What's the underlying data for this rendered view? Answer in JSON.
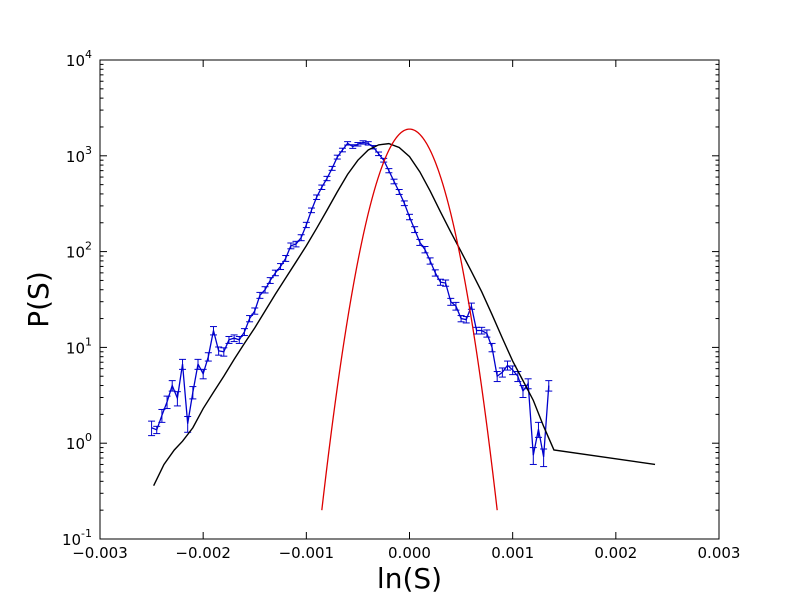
{
  "chart_data": {
    "type": "line",
    "xlabel": "ln(S)",
    "ylabel": "P(S)",
    "xlim": [
      -0.003,
      0.003
    ],
    "ylim": [
      0.1,
      10000
    ],
    "yscale": "log",
    "x_ticks": [
      -0.003,
      -0.002,
      -0.001,
      0.0,
      0.001,
      0.002,
      0.003
    ],
    "x_tick_labels": [
      "−0.003",
      "−0.002",
      "−0.001",
      "0.000",
      "0.001",
      "0.002",
      "0.003"
    ],
    "y_ticks": [
      {
        "value": 0.1,
        "base": "10",
        "exp": "-1"
      },
      {
        "value": 1,
        "base": "10",
        "exp": "0"
      },
      {
        "value": 10,
        "base": "10",
        "exp": "1"
      },
      {
        "value": 100,
        "base": "10",
        "exp": "2"
      },
      {
        "value": 1000,
        "base": "10",
        "exp": "3"
      },
      {
        "value": 10000,
        "base": "10",
        "exp": "4"
      }
    ],
    "grid": false,
    "series": [
      {
        "style": "line-with-errorbars",
        "color": "#0000cc",
        "points": [
          [
            -0.0025,
            1.45,
            0.25
          ],
          [
            -0.00245,
            1.38,
            0.12
          ],
          [
            -0.0024,
            1.95,
            0.3
          ],
          [
            -0.00235,
            2.7,
            0.4
          ],
          [
            -0.0023,
            4.0,
            0.5
          ],
          [
            -0.00225,
            2.95,
            0.5
          ],
          [
            -0.0022,
            6.7,
            0.8
          ],
          [
            -0.00215,
            1.6,
            0.3
          ],
          [
            -0.0021,
            3.4,
            0.5
          ],
          [
            -0.00205,
            6.7,
            0.8
          ],
          [
            -0.002,
            5.3,
            0.6
          ],
          [
            -0.00195,
            8.0,
            0.8
          ],
          [
            -0.0019,
            15.0,
            1.5
          ],
          [
            -0.00185,
            9.2,
            0.9
          ],
          [
            -0.0018,
            9.0,
            0.9
          ],
          [
            -0.00175,
            12.0,
            1.0
          ],
          [
            -0.0017,
            12.5,
            1.0
          ],
          [
            -0.00165,
            12.0,
            1.0
          ],
          [
            -0.0016,
            14.5,
            1.2
          ],
          [
            -0.00155,
            20.0,
            1.5
          ],
          [
            -0.0015,
            24.0,
            1.8
          ],
          [
            -0.00145,
            35.0,
            2.5
          ],
          [
            -0.0014,
            40.0,
            3.0
          ],
          [
            -0.00135,
            50.0,
            3.5
          ],
          [
            -0.0013,
            60.0,
            4.0
          ],
          [
            -0.00125,
            70.0,
            5.0
          ],
          [
            -0.0012,
            85.0,
            6.0
          ],
          [
            -0.00115,
            115.0,
            8.0
          ],
          [
            -0.0011,
            120.0,
            8.0
          ],
          [
            -0.00105,
            140.0,
            10.0
          ],
          [
            -0.001,
            190.0,
            12.0
          ],
          [
            -0.00095,
            270.0,
            15.0
          ],
          [
            -0.0009,
            370.0,
            20.0
          ],
          [
            -0.00085,
            470.0,
            25.0
          ],
          [
            -0.0008,
            580.0,
            30.0
          ],
          [
            -0.00075,
            740.0,
            35.0
          ],
          [
            -0.0007,
            970.0,
            45.0
          ],
          [
            -0.00065,
            1150.0,
            50.0
          ],
          [
            -0.0006,
            1350.0,
            55.0
          ],
          [
            -0.00055,
            1250.0,
            55.0
          ],
          [
            -0.0005,
            1320.0,
            55.0
          ],
          [
            -0.00045,
            1380.0,
            55.0
          ],
          [
            -0.0004,
            1350.0,
            55.0
          ],
          [
            -0.00035,
            1230.0,
            50.0
          ],
          [
            -0.0003,
            1050.0,
            45.0
          ],
          [
            -0.00025,
            900.0,
            40.0
          ],
          [
            -0.0002,
            700.0,
            35.0
          ],
          [
            -0.00015,
            540.0,
            30.0
          ],
          [
            -0.0001,
            420.0,
            25.0
          ],
          [
            -5e-05,
            320.0,
            18.0
          ],
          [
            0.0,
            230.0,
            15.0
          ],
          [
            5e-05,
            170.0,
            12.0
          ],
          [
            0.0001,
            125.0,
            9.0
          ],
          [
            0.00015,
            105.0,
            8.0
          ],
          [
            0.0002,
            80.0,
            6.0
          ],
          [
            0.00025,
            60.0,
            4.5
          ],
          [
            0.0003,
            48.0,
            3.5
          ],
          [
            0.00035,
            47.0,
            3.5
          ],
          [
            0.0004,
            30.0,
            2.5
          ],
          [
            0.00045,
            27.0,
            2.5
          ],
          [
            0.0005,
            20.0,
            1.5
          ],
          [
            0.00055,
            19.5,
            1.5
          ],
          [
            0.0006,
            27.0,
            2.0
          ],
          [
            0.00065,
            15.0,
            1.2
          ],
          [
            0.0007,
            15.0,
            1.2
          ],
          [
            0.00075,
            14.0,
            1.2
          ],
          [
            0.0008,
            10.0,
            1.0
          ],
          [
            0.00085,
            5.0,
            0.6
          ],
          [
            0.0009,
            5.5,
            0.6
          ],
          [
            0.00095,
            6.5,
            0.7
          ],
          [
            0.001,
            5.8,
            0.6
          ],
          [
            0.00105,
            5.0,
            0.6
          ],
          [
            0.0011,
            3.5,
            0.5
          ],
          [
            0.00115,
            4.2,
            0.5
          ],
          [
            0.0012,
            0.75,
            0.15
          ],
          [
            0.00125,
            1.4,
            0.25
          ],
          [
            0.0013,
            0.72,
            0.15
          ],
          [
            0.00135,
            4.0,
            0.5
          ]
        ]
      },
      {
        "style": "line",
        "color": "#000000",
        "points": [
          [
            -0.00248,
            0.36
          ],
          [
            -0.00238,
            0.6
          ],
          [
            -0.00228,
            0.85
          ],
          [
            -0.0022,
            1.05
          ],
          [
            -0.0021,
            1.45
          ],
          [
            -0.002,
            2.3
          ],
          [
            -0.0019,
            3.4
          ],
          [
            -0.0018,
            5.0
          ],
          [
            -0.0017,
            7.5
          ],
          [
            -0.0016,
            11.0
          ],
          [
            -0.0015,
            16.0
          ],
          [
            -0.0014,
            24.0
          ],
          [
            -0.0013,
            36.0
          ],
          [
            -0.0012,
            53.0
          ],
          [
            -0.0011,
            78.0
          ],
          [
            -0.001,
            115.0
          ],
          [
            -0.0009,
            175.0
          ],
          [
            -0.0008,
            270.0
          ],
          [
            -0.0007,
            420.0
          ],
          [
            -0.0006,
            640.0
          ],
          [
            -0.0005,
            900.0
          ],
          [
            -0.0004,
            1150.0
          ],
          [
            -0.0003,
            1300.0
          ],
          [
            -0.0002,
            1340.0
          ],
          [
            -0.0001,
            1220.0
          ],
          [
            0.0,
            980.0
          ],
          [
            0.0001,
            680.0
          ],
          [
            0.0002,
            430.0
          ],
          [
            0.0003,
            260.0
          ],
          [
            0.0004,
            160.0
          ],
          [
            0.0005,
            100.0
          ],
          [
            0.0006,
            62.0
          ],
          [
            0.0007,
            38.0
          ],
          [
            0.0008,
            22.0
          ],
          [
            0.0009,
            12.5
          ],
          [
            0.001,
            7.2
          ],
          [
            0.0011,
            4.5
          ],
          [
            0.0012,
            2.8
          ],
          [
            0.0013,
            1.5
          ],
          [
            0.0014,
            0.85
          ],
          [
            0.00238,
            0.6
          ]
        ]
      },
      {
        "style": "gaussian-curve",
        "color": "#dd0000",
        "x_range": [
          -0.00085,
          0.00085
        ],
        "points": [
          [
            -0.00085,
            0.2
          ],
          [
            -0.0008,
            0.35
          ],
          [
            -0.0007,
            1.2
          ],
          [
            -0.0006,
            4.0
          ],
          [
            -0.0005,
            13.0
          ],
          [
            -0.0004,
            40.0
          ],
          [
            -0.0003,
            120.0
          ],
          [
            -0.0002,
            330.0
          ],
          [
            -0.0001,
            800.0
          ],
          [
            0.0,
            1900.0
          ],
          [
            0.0001,
            800.0
          ],
          [
            0.0002,
            330.0
          ],
          [
            0.0003,
            120.0
          ],
          [
            0.0004,
            40.0
          ],
          [
            0.0005,
            13.0
          ],
          [
            0.0006,
            4.0
          ],
          [
            0.0007,
            1.2
          ],
          [
            0.0008,
            0.35
          ],
          [
            0.00085,
            0.2
          ]
        ]
      }
    ]
  }
}
